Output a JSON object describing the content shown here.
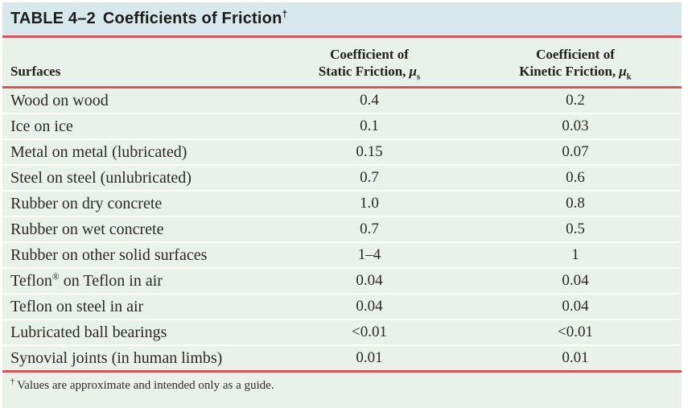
{
  "title": {
    "label_table_no": "TABLE 4–2",
    "label_subject": "Coefficients of Friction",
    "dagger": "†"
  },
  "columns": [
    {
      "label": "Surfaces"
    },
    {
      "line1": "Coefficient of",
      "line2": "Static Friction,",
      "symbol": "μ",
      "subscript": "s"
    },
    {
      "line1": "Coefficient of",
      "line2": "Kinetic Friction,",
      "symbol": "μ",
      "subscript": "k"
    }
  ],
  "rows": [
    {
      "surface": "Wood on wood",
      "static": "0.4",
      "kinetic": "0.2"
    },
    {
      "surface": "Ice on ice",
      "static": "0.1",
      "kinetic": "0.03"
    },
    {
      "surface": "Metal on metal (lubricated)",
      "static": "0.15",
      "kinetic": "0.07"
    },
    {
      "surface": "Steel on steel (unlubricated)",
      "static": "0.7",
      "kinetic": "0.6"
    },
    {
      "surface": "Rubber on dry concrete",
      "static": "1.0",
      "kinetic": "0.8"
    },
    {
      "surface": "Rubber on wet concrete",
      "static": "0.7",
      "kinetic": "0.5"
    },
    {
      "surface": "Rubber on other solid surfaces",
      "static": "1–4",
      "kinetic": "1"
    },
    {
      "surface": "Teflon® on Teflon in air",
      "static": "0.04",
      "kinetic": "0.04"
    },
    {
      "surface": "Teflon on steel in air",
      "static": "0.04",
      "kinetic": "0.04"
    },
    {
      "surface": "Lubricated ball bearings",
      "static": "<0.01",
      "kinetic": "<0.01"
    },
    {
      "surface": "Synovial joints (in human limbs)",
      "static": "0.01",
      "kinetic": "0.01"
    }
  ],
  "footnote": {
    "marker": "†",
    "text": "Values are approximate and intended only as a guide."
  },
  "colors": {
    "title_bar_bg": "#d7e9ec",
    "body_bg": "#e9f1eb",
    "rule_red": "#d6575a",
    "row_separator": "#fafcfa",
    "text": "#2b2826"
  }
}
